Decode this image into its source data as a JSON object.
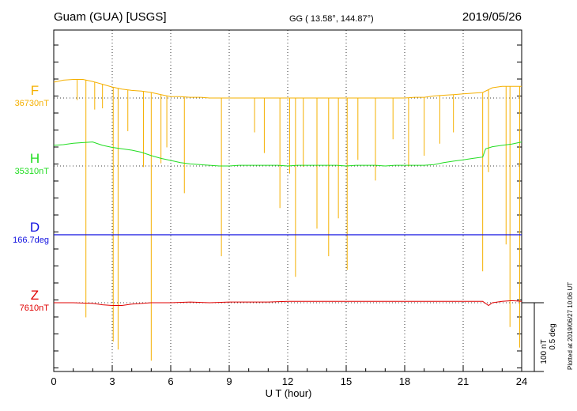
{
  "header": {
    "station": "Guam (GUA)  [USGS]",
    "coords": "GG ( 13.58°, 144.87°)",
    "date": "2019/05/26"
  },
  "footer": {
    "plotted": "Plotted at 2019/06/27 10:06 UT"
  },
  "scale": {
    "nt": "100 nT",
    "deg": "0.5 deg"
  },
  "colors": {
    "F": "#f5b000",
    "H": "#22dd22",
    "D": "#1010e0",
    "Z": "#e00000"
  },
  "chart_data": {
    "type": "line",
    "title": "",
    "xlabel": "U T (hour)",
    "xlim": [
      0,
      24
    ],
    "xticks": [
      0,
      3,
      6,
      9,
      12,
      15,
      18,
      21,
      24
    ],
    "grid": "dotted vertical every 3 h; dotted baseline per channel",
    "channels": [
      {
        "name": "F",
        "baseline_label": "36730nT",
        "unit": "nT",
        "baseline": 36730
      },
      {
        "name": "H",
        "baseline_label": "35310nT",
        "unit": "nT",
        "baseline": 35310
      },
      {
        "name": "D",
        "baseline_label": "166.7deg",
        "unit": "deg",
        "baseline": 166.7
      },
      {
        "name": "Z",
        "baseline_label": "7610nT",
        "unit": "nT",
        "baseline": 7610
      }
    ],
    "series": [
      {
        "name": "F",
        "x": [
          0,
          0.5,
          1,
          1.5,
          2,
          2.5,
          3,
          3.5,
          4,
          4.5,
          5,
          5.5,
          6,
          6.5,
          7,
          7.5,
          8,
          8.5,
          9,
          9.5,
          10,
          10.5,
          11,
          11.5,
          12,
          12.5,
          13,
          13.5,
          14,
          14.5,
          15,
          15.5,
          16,
          16.5,
          17,
          17.5,
          18,
          18.5,
          19,
          19.5,
          20,
          20.5,
          21,
          21.5,
          22,
          22.5,
          23,
          23.5,
          24
        ],
        "values": [
          36753,
          36756,
          36757,
          36757,
          36754,
          36750,
          36746,
          36743,
          36741,
          36740,
          36738,
          36735,
          36732,
          36732,
          36731,
          36731,
          36730,
          36730,
          36730,
          36730,
          36730,
          36730,
          36730,
          36730,
          36730,
          36730,
          36730,
          36730,
          36730,
          36730,
          36730,
          36730,
          36730,
          36730,
          36730,
          36730,
          36730,
          36731,
          36731,
          36733,
          36734,
          36735,
          36736,
          36737,
          36738,
          36745,
          36747,
          36747,
          36747
        ],
        "spikes": [
          {
            "x": 1.2,
            "depth": 30
          },
          {
            "x": 1.65,
            "depth": 345
          },
          {
            "x": 2.1,
            "depth": 40
          },
          {
            "x": 2.5,
            "depth": 35
          },
          {
            "x": 3.05,
            "depth": 370
          },
          {
            "x": 3.3,
            "depth": 380
          },
          {
            "x": 3.8,
            "depth": 60
          },
          {
            "x": 4.6,
            "depth": 110
          },
          {
            "x": 5.0,
            "depth": 390
          },
          {
            "x": 5.5,
            "depth": 100
          },
          {
            "x": 5.8,
            "depth": 75
          },
          {
            "x": 6.7,
            "depth": 140
          },
          {
            "x": 8.6,
            "depth": 230
          },
          {
            "x": 10.3,
            "depth": 50
          },
          {
            "x": 10.8,
            "depth": 80
          },
          {
            "x": 11.6,
            "depth": 160
          },
          {
            "x": 12.1,
            "depth": 110
          },
          {
            "x": 12.4,
            "depth": 260
          },
          {
            "x": 12.8,
            "depth": 100
          },
          {
            "x": 13.5,
            "depth": 190
          },
          {
            "x": 14.1,
            "depth": 230
          },
          {
            "x": 14.6,
            "depth": 175
          },
          {
            "x": 15.05,
            "depth": 250
          },
          {
            "x": 15.6,
            "depth": 90
          },
          {
            "x": 16.5,
            "depth": 120
          },
          {
            "x": 17.4,
            "depth": 60
          },
          {
            "x": 18.2,
            "depth": 100
          },
          {
            "x": 19.0,
            "depth": 85
          },
          {
            "x": 19.8,
            "depth": 70
          },
          {
            "x": 20.5,
            "depth": 55
          },
          {
            "x": 22.0,
            "depth": 260
          },
          {
            "x": 22.3,
            "depth": 120
          },
          {
            "x": 23.2,
            "depth": 230
          },
          {
            "x": 23.4,
            "depth": 350
          },
          {
            "x": 23.9,
            "depth": 380
          }
        ]
      },
      {
        "name": "H",
        "x": [
          0,
          0.5,
          1,
          1.5,
          2,
          2.5,
          3,
          3.5,
          4,
          4.5,
          5,
          5.5,
          6,
          6.5,
          7,
          7.5,
          8,
          8.5,
          9,
          9.5,
          10,
          10.5,
          11,
          11.5,
          12,
          12.5,
          13,
          13.5,
          14,
          14.5,
          15,
          15.5,
          16,
          16.5,
          17,
          17.5,
          18,
          18.5,
          19,
          19.5,
          20,
          20.5,
          21,
          21.5,
          22,
          22.15,
          22.5,
          23,
          23.5,
          24
        ],
        "values": [
          35340,
          35341,
          35343,
          35344,
          35345,
          35340,
          35337,
          35335,
          35333,
          35330,
          35325,
          35321,
          35318,
          35315,
          35313,
          35312,
          35311,
          35310,
          35310,
          35311,
          35311,
          35311,
          35311,
          35311,
          35310,
          35311,
          35311,
          35311,
          35311,
          35311,
          35310,
          35311,
          35311,
          35311,
          35310,
          35311,
          35311,
          35311,
          35311,
          35312,
          35315,
          35317,
          35319,
          35321,
          35323,
          35335,
          35338,
          35340,
          35342,
          35345
        ]
      },
      {
        "name": "D",
        "x": [
          0,
          3,
          6,
          9,
          12,
          15,
          18,
          21,
          24
        ],
        "values": [
          166.7,
          166.7,
          166.7,
          166.7,
          166.7,
          166.7,
          166.7,
          166.7,
          166.7
        ]
      },
      {
        "name": "Z",
        "x": [
          0,
          1,
          2,
          2.5,
          3,
          3.5,
          4,
          4.5,
          5,
          6,
          7,
          8,
          9,
          10,
          11,
          12,
          13,
          14,
          15,
          16,
          17,
          18,
          19,
          20,
          21,
          22,
          22.3,
          22.5,
          23,
          23.5,
          24
        ],
        "values": [
          7610,
          7610,
          7609,
          7607,
          7606,
          7606,
          7608,
          7609,
          7610,
          7610,
          7611,
          7610,
          7611,
          7611,
          7611,
          7612,
          7612,
          7612,
          7612,
          7612,
          7612,
          7612,
          7612,
          7612,
          7612,
          7612,
          7606,
          7610,
          7612,
          7613,
          7612
        ]
      }
    ]
  }
}
